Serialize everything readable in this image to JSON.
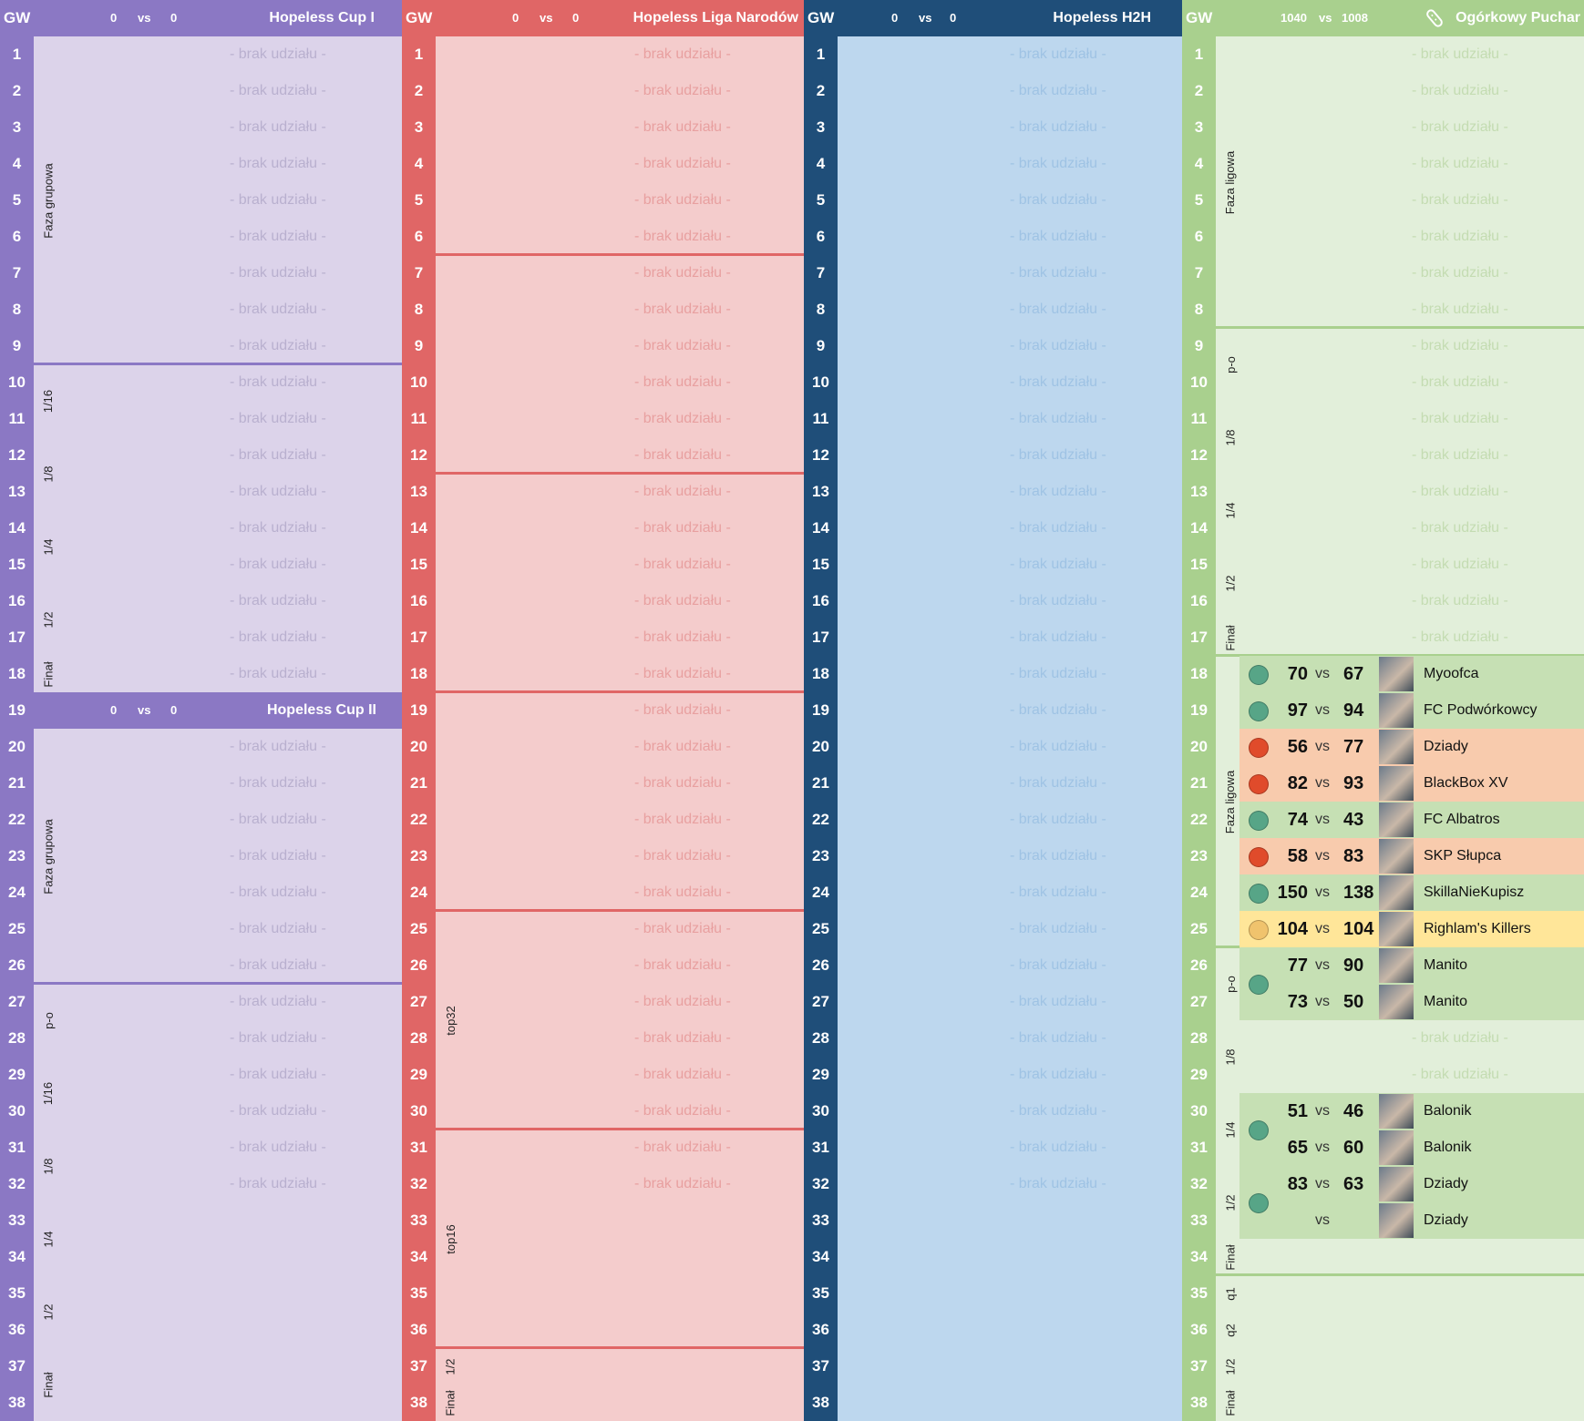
{
  "gw_label": "GW",
  "vs_label": "vs",
  "placeholder": "- brak udziału -",
  "colors": {
    "purple_header": "#8b78c4",
    "purple_body": "#dcd3ea",
    "red_header": "#e06666",
    "red_body": "#f4cccc",
    "blue_header": "#1f4e79",
    "blue_body": "#bdd7ee",
    "green_header": "#a9d08e",
    "green_body": "#e2efda",
    "win": "#57a587",
    "loss": "#e04b2b",
    "draw": "#f0c36d"
  },
  "cup1": {
    "title": "Hopeless Cup I",
    "score_a": "0",
    "score_b": "0",
    "phases": [
      "Faza grupowa",
      "1/16",
      "1/8",
      "1/4",
      "1/2",
      "Finał"
    ]
  },
  "cup2": {
    "title": "Hopeless Cup II",
    "score_a": "0",
    "score_b": "0",
    "phases": [
      "Faza grupowa",
      "p-o",
      "1/16",
      "1/8",
      "1/4",
      "1/2",
      "Finał"
    ]
  },
  "liga": {
    "title": "Hopeless Liga Narodów",
    "score_a": "0",
    "score_b": "0",
    "phases": [
      "top32",
      "top16",
      "1/2",
      "Finał"
    ]
  },
  "h2h": {
    "title": "Hopeless H2H",
    "score_a": "0",
    "score_b": "0"
  },
  "ogorek": {
    "title": "Ogórkowy Puchar",
    "score_a": "1040",
    "score_b": "1008",
    "icon": "pickle-icon",
    "phases": [
      "Faza ligowa",
      "p-o",
      "1/8",
      "1/4",
      "1/2",
      "Finał",
      "Faza ligowa",
      "p-o",
      "1/8",
      "1/4",
      "1/2",
      "Finał",
      "q1",
      "q2",
      "1/2",
      "Finał"
    ],
    "matches": [
      {
        "gw": 18,
        "a": "70",
        "b": "67",
        "opp": "Myoofca",
        "res": "win"
      },
      {
        "gw": 19,
        "a": "97",
        "b": "94",
        "opp": "FC Podwórkowcy",
        "res": "win"
      },
      {
        "gw": 20,
        "a": "56",
        "b": "77",
        "opp": "Dziady",
        "res": "loss"
      },
      {
        "gw": 21,
        "a": "82",
        "b": "93",
        "opp": "BlackBox XV",
        "res": "loss"
      },
      {
        "gw": 22,
        "a": "74",
        "b": "43",
        "opp": "FC Albatros",
        "res": "win"
      },
      {
        "gw": 23,
        "a": "58",
        "b": "83",
        "opp": "SKP Słupca",
        "res": "loss"
      },
      {
        "gw": 24,
        "a": "150",
        "b": "138",
        "opp": "SkillaNieKupisz",
        "res": "win"
      },
      {
        "gw": 25,
        "a": "104",
        "b": "104",
        "opp": "Righlam's Killers",
        "res": "draw"
      },
      {
        "gw": 26,
        "a": "77",
        "b": "90",
        "opp": "Manito",
        "res": "win"
      },
      {
        "gw": 27,
        "a": "73",
        "b": "50",
        "opp": "Manito",
        "res": "win"
      },
      {
        "gw": 30,
        "a": "51",
        "b": "46",
        "opp": "Balonik",
        "res": "win"
      },
      {
        "gw": 31,
        "a": "65",
        "b": "60",
        "opp": "Balonik",
        "res": "win"
      },
      {
        "gw": 32,
        "a": "83",
        "b": "63",
        "opp": "Dziady",
        "res": "win"
      },
      {
        "gw": 33,
        "a": "",
        "b": "",
        "opp": "Dziady",
        "res": "win"
      }
    ]
  }
}
